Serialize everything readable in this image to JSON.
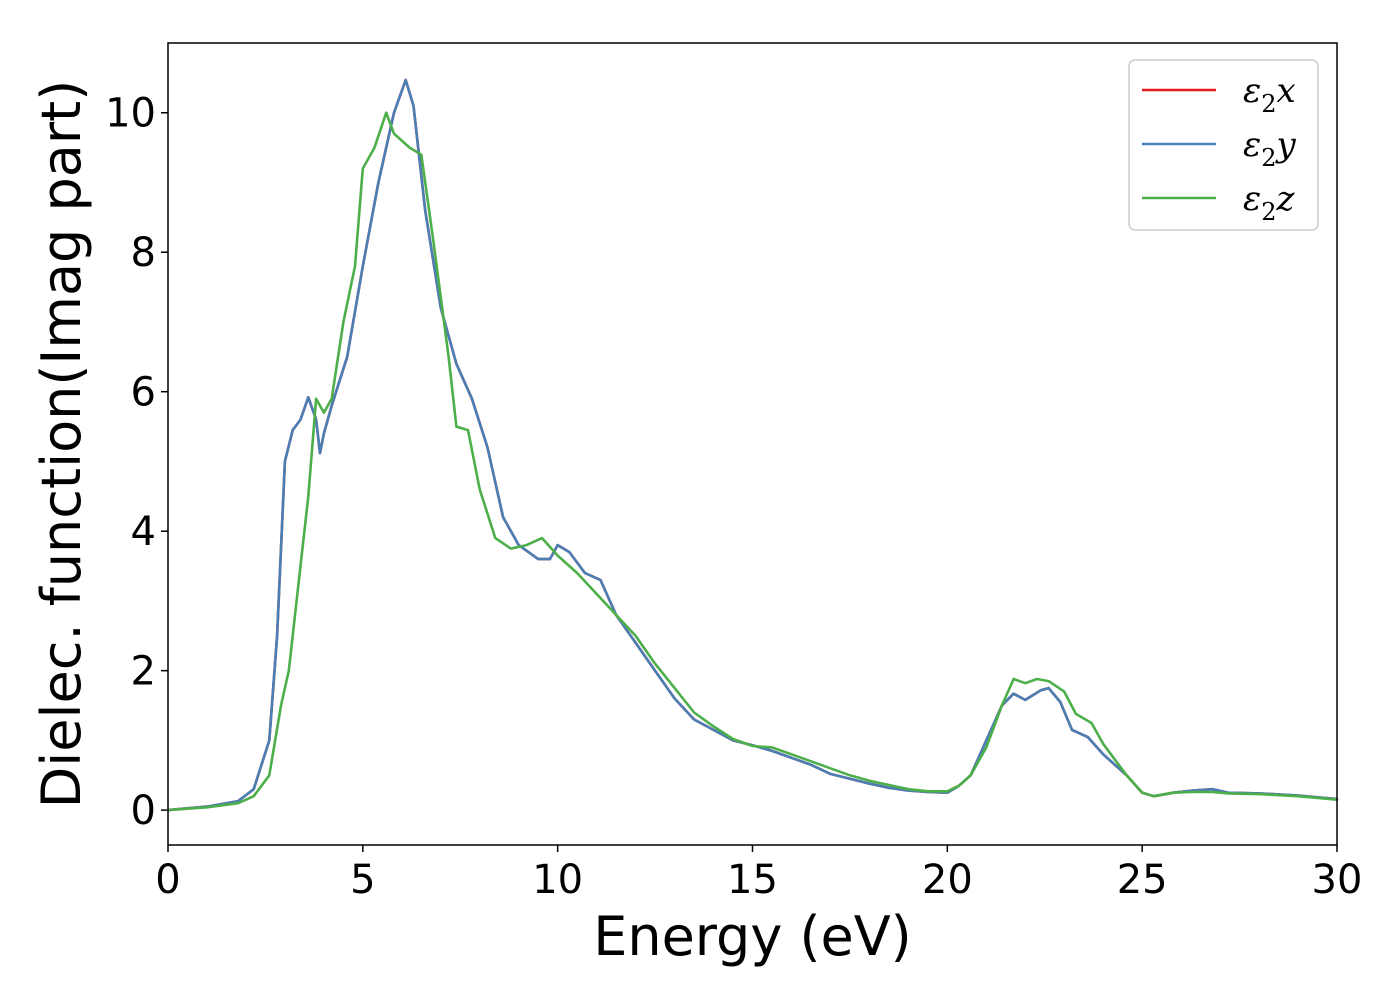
{
  "chart_data": {
    "type": "line",
    "xlabel": "Energy (eV)",
    "ylabel": "Dielec. function(Imag part)",
    "xlim": [
      0,
      30
    ],
    "ylim": [
      -0.5,
      11
    ],
    "xticks": [
      0,
      5,
      10,
      15,
      20,
      25,
      30
    ],
    "yticks": [
      0,
      2,
      4,
      6,
      8,
      10
    ],
    "grid": false,
    "legend_position": "top-right",
    "series": [
      {
        "name": "ε2x",
        "legend_symbol": "ε",
        "legend_sub": "2",
        "legend_axis": "x",
        "color": "#e41a1c",
        "points": [
          [
            0,
            0
          ],
          [
            1,
            0.05
          ],
          [
            1.8,
            0.13
          ],
          [
            2.2,
            0.3
          ],
          [
            2.6,
            1.0
          ],
          [
            2.8,
            2.5
          ],
          [
            3.0,
            5.0
          ],
          [
            3.2,
            5.45
          ],
          [
            3.4,
            5.6
          ],
          [
            3.6,
            5.92
          ],
          [
            3.8,
            5.6
          ],
          [
            3.9,
            5.12
          ],
          [
            4.0,
            5.4
          ],
          [
            4.2,
            5.8
          ],
          [
            4.6,
            6.5
          ],
          [
            5.0,
            7.8
          ],
          [
            5.4,
            9.0
          ],
          [
            5.8,
            10.0
          ],
          [
            6.1,
            10.47
          ],
          [
            6.3,
            10.1
          ],
          [
            6.6,
            8.6
          ],
          [
            7.0,
            7.2
          ],
          [
            7.4,
            6.4
          ],
          [
            7.8,
            5.9
          ],
          [
            8.2,
            5.2
          ],
          [
            8.6,
            4.2
          ],
          [
            9.0,
            3.8
          ],
          [
            9.5,
            3.6
          ],
          [
            9.8,
            3.6
          ],
          [
            10.0,
            3.8
          ],
          [
            10.3,
            3.7
          ],
          [
            10.7,
            3.4
          ],
          [
            11.1,
            3.3
          ],
          [
            11.5,
            2.8
          ],
          [
            12.0,
            2.4
          ],
          [
            12.5,
            2.0
          ],
          [
            13.0,
            1.6
          ],
          [
            13.5,
            1.3
          ],
          [
            14.0,
            1.15
          ],
          [
            14.5,
            1.0
          ],
          [
            15.0,
            0.93
          ],
          [
            15.5,
            0.85
          ],
          [
            16.0,
            0.75
          ],
          [
            16.5,
            0.65
          ],
          [
            17.0,
            0.52
          ],
          [
            17.5,
            0.45
          ],
          [
            18.0,
            0.38
          ],
          [
            18.5,
            0.32
          ],
          [
            19.0,
            0.28
          ],
          [
            19.5,
            0.26
          ],
          [
            20.0,
            0.25
          ],
          [
            20.3,
            0.35
          ],
          [
            20.6,
            0.5
          ],
          [
            21.0,
            1.0
          ],
          [
            21.4,
            1.5
          ],
          [
            21.7,
            1.67
          ],
          [
            22.0,
            1.58
          ],
          [
            22.4,
            1.72
          ],
          [
            22.6,
            1.75
          ],
          [
            22.9,
            1.55
          ],
          [
            23.2,
            1.15
          ],
          [
            23.6,
            1.05
          ],
          [
            24.0,
            0.8
          ],
          [
            24.6,
            0.5
          ],
          [
            25.0,
            0.25
          ],
          [
            25.3,
            0.2
          ],
          [
            25.8,
            0.25
          ],
          [
            26.3,
            0.28
          ],
          [
            26.8,
            0.3
          ],
          [
            27.2,
            0.25
          ],
          [
            28.0,
            0.24
          ],
          [
            29.0,
            0.21
          ],
          [
            30.0,
            0.16
          ]
        ]
      },
      {
        "name": "ε2y",
        "legend_symbol": "ε",
        "legend_sub": "2",
        "legend_axis": "y",
        "color": "#4a7fb5",
        "points": [
          [
            0,
            0
          ],
          [
            1,
            0.05
          ],
          [
            1.8,
            0.13
          ],
          [
            2.2,
            0.3
          ],
          [
            2.6,
            1.0
          ],
          [
            2.8,
            2.5
          ],
          [
            3.0,
            5.0
          ],
          [
            3.2,
            5.45
          ],
          [
            3.4,
            5.6
          ],
          [
            3.6,
            5.92
          ],
          [
            3.8,
            5.6
          ],
          [
            3.9,
            5.12
          ],
          [
            4.0,
            5.4
          ],
          [
            4.2,
            5.8
          ],
          [
            4.6,
            6.5
          ],
          [
            5.0,
            7.8
          ],
          [
            5.4,
            9.0
          ],
          [
            5.8,
            10.0
          ],
          [
            6.1,
            10.47
          ],
          [
            6.3,
            10.1
          ],
          [
            6.6,
            8.6
          ],
          [
            7.0,
            7.2
          ],
          [
            7.4,
            6.4
          ],
          [
            7.8,
            5.9
          ],
          [
            8.2,
            5.2
          ],
          [
            8.6,
            4.2
          ],
          [
            9.0,
            3.8
          ],
          [
            9.5,
            3.6
          ],
          [
            9.8,
            3.6
          ],
          [
            10.0,
            3.8
          ],
          [
            10.3,
            3.7
          ],
          [
            10.7,
            3.4
          ],
          [
            11.1,
            3.3
          ],
          [
            11.5,
            2.8
          ],
          [
            12.0,
            2.4
          ],
          [
            12.5,
            2.0
          ],
          [
            13.0,
            1.6
          ],
          [
            13.5,
            1.3
          ],
          [
            14.0,
            1.15
          ],
          [
            14.5,
            1.0
          ],
          [
            15.0,
            0.93
          ],
          [
            15.5,
            0.85
          ],
          [
            16.0,
            0.75
          ],
          [
            16.5,
            0.65
          ],
          [
            17.0,
            0.52
          ],
          [
            17.5,
            0.45
          ],
          [
            18.0,
            0.38
          ],
          [
            18.5,
            0.32
          ],
          [
            19.0,
            0.28
          ],
          [
            19.5,
            0.26
          ],
          [
            20.0,
            0.25
          ],
          [
            20.3,
            0.35
          ],
          [
            20.6,
            0.5
          ],
          [
            21.0,
            1.0
          ],
          [
            21.4,
            1.5
          ],
          [
            21.7,
            1.67
          ],
          [
            22.0,
            1.58
          ],
          [
            22.4,
            1.72
          ],
          [
            22.6,
            1.75
          ],
          [
            22.9,
            1.55
          ],
          [
            23.2,
            1.15
          ],
          [
            23.6,
            1.05
          ],
          [
            24.0,
            0.8
          ],
          [
            24.6,
            0.5
          ],
          [
            25.0,
            0.25
          ],
          [
            25.3,
            0.2
          ],
          [
            25.8,
            0.25
          ],
          [
            26.3,
            0.28
          ],
          [
            26.8,
            0.3
          ],
          [
            27.2,
            0.25
          ],
          [
            28.0,
            0.24
          ],
          [
            29.0,
            0.21
          ],
          [
            30.0,
            0.16
          ]
        ]
      },
      {
        "name": "ε2z",
        "legend_symbol": "ε",
        "legend_sub": "2",
        "legend_axis": "z",
        "color": "#4daf4a",
        "points": [
          [
            0,
            0
          ],
          [
            1,
            0.04
          ],
          [
            1.8,
            0.1
          ],
          [
            2.2,
            0.2
          ],
          [
            2.6,
            0.5
          ],
          [
            2.9,
            1.5
          ],
          [
            3.1,
            2.0
          ],
          [
            3.3,
            3.0
          ],
          [
            3.6,
            4.5
          ],
          [
            3.8,
            5.9
          ],
          [
            4.0,
            5.7
          ],
          [
            4.2,
            5.9
          ],
          [
            4.5,
            7.0
          ],
          [
            4.8,
            7.8
          ],
          [
            5.0,
            9.2
          ],
          [
            5.3,
            9.5
          ],
          [
            5.6,
            10.0
          ],
          [
            5.8,
            9.7
          ],
          [
            6.2,
            9.5
          ],
          [
            6.5,
            9.4
          ],
          [
            6.8,
            8.2
          ],
          [
            7.2,
            6.5
          ],
          [
            7.4,
            5.5
          ],
          [
            7.7,
            5.45
          ],
          [
            8.0,
            4.6
          ],
          [
            8.4,
            3.9
          ],
          [
            8.8,
            3.75
          ],
          [
            9.2,
            3.8
          ],
          [
            9.6,
            3.9
          ],
          [
            10.0,
            3.65
          ],
          [
            10.5,
            3.4
          ],
          [
            11.0,
            3.1
          ],
          [
            11.5,
            2.8
          ],
          [
            12.0,
            2.5
          ],
          [
            12.5,
            2.1
          ],
          [
            13.0,
            1.75
          ],
          [
            13.5,
            1.4
          ],
          [
            14.0,
            1.2
          ],
          [
            14.5,
            1.02
          ],
          [
            15.0,
            0.92
          ],
          [
            15.5,
            0.9
          ],
          [
            16.0,
            0.8
          ],
          [
            16.5,
            0.7
          ],
          [
            17.0,
            0.6
          ],
          [
            17.5,
            0.5
          ],
          [
            18.0,
            0.42
          ],
          [
            18.5,
            0.36
          ],
          [
            19.0,
            0.3
          ],
          [
            19.5,
            0.27
          ],
          [
            20.0,
            0.27
          ],
          [
            20.3,
            0.35
          ],
          [
            20.6,
            0.5
          ],
          [
            21.0,
            0.9
          ],
          [
            21.4,
            1.5
          ],
          [
            21.7,
            1.88
          ],
          [
            22.0,
            1.82
          ],
          [
            22.3,
            1.88
          ],
          [
            22.6,
            1.85
          ],
          [
            23.0,
            1.7
          ],
          [
            23.3,
            1.38
          ],
          [
            23.7,
            1.25
          ],
          [
            24.0,
            0.95
          ],
          [
            24.6,
            0.5
          ],
          [
            25.0,
            0.25
          ],
          [
            25.3,
            0.2
          ],
          [
            25.8,
            0.25
          ],
          [
            26.3,
            0.26
          ],
          [
            26.8,
            0.26
          ],
          [
            27.2,
            0.24
          ],
          [
            28.0,
            0.23
          ],
          [
            29.0,
            0.2
          ],
          [
            30.0,
            0.15
          ]
        ]
      }
    ]
  }
}
